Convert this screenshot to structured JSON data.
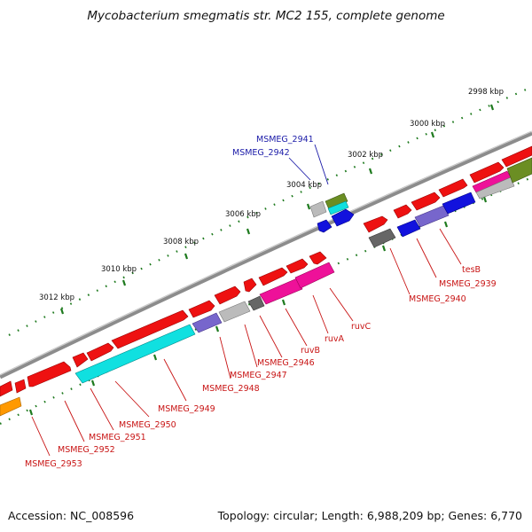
{
  "title": "Mycobacterium smegmatis str. MC2 155, complete genome",
  "footer": {
    "accession": "Accession: NC_008596",
    "summary": "Topology: circular; Length: 6,988,209 bp; Genes: 6,770"
  },
  "scale_labels": [
    "2998 kbp",
    "3000 kbp",
    "3002 kbp",
    "3004 kbp",
    "3006 kbp",
    "3008 kbp",
    "3010 kbp",
    "3012 kbp"
  ],
  "gene_labels": [
    {
      "text": "MSMEG_2941",
      "color": "#1a1aa8"
    },
    {
      "text": "MSMEG_2942",
      "color": "#1a1aa8"
    },
    {
      "text": "tesB",
      "color": "#c81414"
    },
    {
      "text": "MSMEG_2939",
      "color": "#c81414"
    },
    {
      "text": "MSMEG_2940",
      "color": "#c81414"
    },
    {
      "text": "ruvC",
      "color": "#c81414"
    },
    {
      "text": "ruvA",
      "color": "#c81414"
    },
    {
      "text": "ruvB",
      "color": "#c81414"
    },
    {
      "text": "MSMEG_2946",
      "color": "#c81414"
    },
    {
      "text": "MSMEG_2947",
      "color": "#c81414"
    },
    {
      "text": "MSMEG_2948",
      "color": "#c81414"
    },
    {
      "text": "MSMEG_2949",
      "color": "#c81414"
    },
    {
      "text": "MSMEG_2950",
      "color": "#c81414"
    },
    {
      "text": "MSMEG_2951",
      "color": "#c81414"
    },
    {
      "text": "MSMEG_2952",
      "color": "#c81414"
    },
    {
      "text": "MSMEG_2953",
      "color": "#c81414"
    }
  ],
  "colors": {
    "backbone": "#8c8c8c",
    "tick": "#1e7a1e",
    "red": "#ee1111",
    "cyan": "#10e0e0",
    "blue": "#1212dd",
    "magenta": "#ee1199",
    "lavender": "#7766cc",
    "grey": "#bbbbbb",
    "darkgrey": "#666666",
    "olive": "#6b8e23",
    "orange": "#ff9900"
  }
}
